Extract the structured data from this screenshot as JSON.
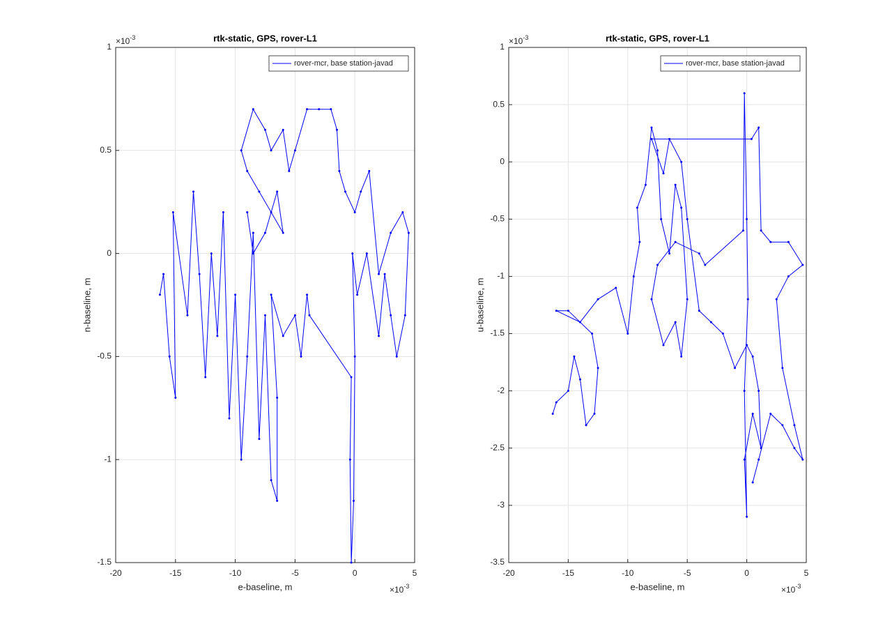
{
  "chart_data": [
    {
      "type": "line",
      "title": "rtk-static, GPS, rover-L1",
      "xlabel": "e-baseline, m",
      "ylabel": "n-baseline, m",
      "x_multiplier": {
        "base": "×10",
        "exponent": "-3"
      },
      "y_multiplier": {
        "base": "×10",
        "exponent": "-3"
      },
      "xlim": [
        -20,
        5
      ],
      "xticks": [
        -20,
        -15,
        -10,
        -5,
        0,
        5
      ],
      "ylim": [
        -1.5,
        1
      ],
      "yticks": [
        -1.5,
        -1,
        -0.5,
        0,
        0.5,
        1
      ],
      "grid": true,
      "legend": "upper right",
      "series": [
        {
          "name": "rover-mcr, base station-javad",
          "color": "#0000ff",
          "x": [
            -16.3,
            -16,
            -15.5,
            -15,
            -15.2,
            -14,
            -13.5,
            -13,
            -12.5,
            -12,
            -11.5,
            -11,
            -10.5,
            -10,
            -9.5,
            -9,
            -8.5,
            -8,
            -7.5,
            -7,
            -6.5,
            -6.5,
            -7,
            -6,
            -5,
            -4.5,
            -4,
            -3.8,
            -0.3,
            -0.4,
            -0.3,
            -0.1,
            0,
            -0.2,
            0.2,
            1,
            2,
            2.5,
            3,
            3.5,
            4.2,
            4.5,
            4,
            3,
            2,
            1.2,
            0.5,
            0,
            -0.8,
            -1.3,
            -1.5,
            -2,
            -3,
            -4,
            -5,
            -5.5,
            -6,
            -7,
            -7.5,
            -8.5,
            -9.5,
            -9,
            -8,
            -7,
            -6,
            -6.5,
            -7.5,
            -8.5,
            -9
          ],
          "values": [
            -0.2,
            -0.1,
            -0.5,
            -0.7,
            0.2,
            -0.3,
            0.3,
            -0.1,
            -0.6,
            0,
            -0.4,
            0.2,
            -0.8,
            -0.2,
            -1,
            -0.5,
            0.1,
            -0.9,
            -0.3,
            -1.1,
            -1.2,
            -0.7,
            -0.2,
            -0.4,
            -0.3,
            -0.5,
            -0.2,
            -0.3,
            -0.6,
            -1,
            -1.5,
            -1.2,
            -0.5,
            0,
            -0.2,
            0,
            -0.4,
            -0.1,
            -0.3,
            -0.5,
            -0.3,
            0.1,
            0.2,
            0.1,
            -0.1,
            0.4,
            0.3,
            0.2,
            0.3,
            0.4,
            0.6,
            0.7,
            0.7,
            0.7,
            0.5,
            0.4,
            0.6,
            0.5,
            0.6,
            0.7,
            0.5,
            0.4,
            0.3,
            0.2,
            0.1,
            0.3,
            0.1,
            0,
            0.2
          ]
        }
      ]
    },
    {
      "type": "line",
      "title": "rtk-static, GPS, rover-L1",
      "xlabel": "e-baseline, m",
      "ylabel": "u-baseline, m",
      "x_multiplier": {
        "base": "×10",
        "exponent": "-3"
      },
      "y_multiplier": {
        "base": "×10",
        "exponent": "-3"
      },
      "xlim": [
        -20,
        5
      ],
      "xticks": [
        -20,
        -15,
        -10,
        -5,
        0,
        5
      ],
      "ylim": [
        -3.5,
        1
      ],
      "yticks": [
        -3.5,
        -3,
        -2.5,
        -2,
        -1.5,
        -1,
        -0.5,
        0,
        0.5,
        1
      ],
      "grid": true,
      "legend": "upper right",
      "series": [
        {
          "name": "rover-mcr, base station-javad",
          "color": "#0000ff",
          "x": [
            -16.3,
            -16,
            -15,
            -14.5,
            -14,
            -13.5,
            -12.8,
            -12.5,
            -13,
            -15,
            -16,
            -14,
            -12.5,
            -11,
            -10,
            -9.5,
            -9,
            -9.2,
            -8.5,
            -8,
            -7.5,
            -7.2,
            -6.5,
            -6,
            -5.5,
            -5,
            -5.5,
            -6,
            -7,
            -8,
            -7.5,
            -6,
            -4,
            -3.5,
            -0.3,
            -0.2,
            0,
            0.1,
            -0.2,
            0,
            -0.2,
            0.5,
            1.2,
            1,
            0.5,
            0,
            -1,
            -2,
            -3,
            -4,
            -5,
            -5.5,
            -6.5,
            -7,
            -8,
            0.4,
            1,
            1.2,
            2,
            3.5,
            4.7,
            3.5,
            2.5,
            3,
            4,
            4.7,
            4,
            3,
            2,
            1,
            0.5
          ],
          "values": [
            -2.2,
            -2.1,
            -2,
            -1.7,
            -1.9,
            -2.3,
            -2.2,
            -1.8,
            -1.5,
            -1.3,
            -1.3,
            -1.4,
            -1.2,
            -1.1,
            -1.5,
            -1,
            -0.7,
            -0.4,
            -0.2,
            0.3,
            0.1,
            -0.5,
            -0.8,
            -0.2,
            -0.4,
            -1.2,
            -1.7,
            -1.4,
            -1.6,
            -1.2,
            -0.9,
            -0.7,
            -0.8,
            -0.9,
            -0.6,
            0.6,
            -0.5,
            -1.2,
            -2,
            -3.1,
            -2.6,
            -2.2,
            -2.5,
            -2,
            -1.7,
            -1.6,
            -1.8,
            -1.5,
            -1.4,
            -1.3,
            -0.5,
            0,
            0.2,
            -0.1,
            0.2,
            0.2,
            0.3,
            -0.6,
            -0.7,
            -0.7,
            -0.9,
            -1,
            -1.2,
            -1.8,
            -2.3,
            -2.6,
            -2.5,
            -2.3,
            -2.2,
            -2.6,
            -2.8
          ]
        }
      ]
    }
  ]
}
